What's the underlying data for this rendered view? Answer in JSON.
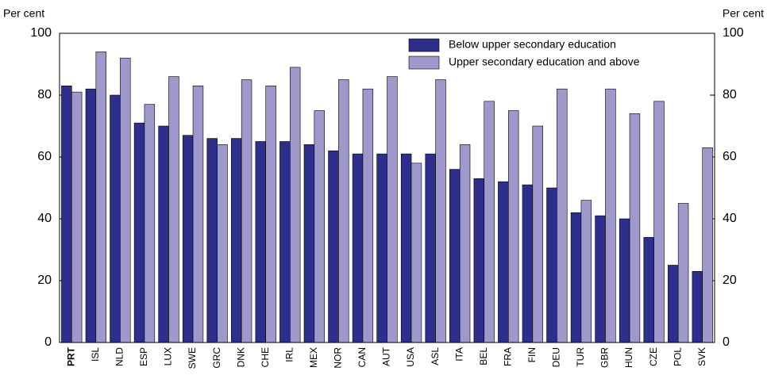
{
  "chart_data": {
    "type": "bar",
    "y_label": "Per cent",
    "y2_label": "Per cent",
    "categories": [
      "PRT",
      "ISL",
      "NLD",
      "ESP",
      "LUX",
      "SWE",
      "GRC",
      "DNK",
      "CHE",
      "IRL",
      "MEX",
      "NOR",
      "CAN",
      "AUT",
      "USA",
      "ASL",
      "ITA",
      "BEL",
      "FRA",
      "FIN",
      "DEU",
      "TUR",
      "GBR",
      "HUN",
      "CZE",
      "POL",
      "SVK"
    ],
    "series": [
      {
        "name": "Below upper secondary education",
        "color": "#2e2e8c",
        "values": [
          83,
          82,
          80,
          71,
          70,
          67,
          66,
          66,
          65,
          65,
          64,
          62,
          61,
          61,
          61,
          61,
          56,
          53,
          52,
          51,
          50,
          42,
          41,
          40,
          34,
          25,
          23
        ]
      },
      {
        "name": "Upper secondary education and above",
        "color": "#9e98cb",
        "values": [
          81,
          94,
          92,
          77,
          86,
          83,
          64,
          85,
          83,
          89,
          75,
          85,
          82,
          86,
          58,
          85,
          64,
          78,
          75,
          70,
          82,
          46,
          82,
          74,
          78,
          45,
          63
        ]
      }
    ],
    "ylim": [
      0,
      100
    ],
    "yticks": [
      0,
      20,
      40,
      60,
      80,
      100
    ],
    "y2lim": [
      0,
      100
    ],
    "y2ticks": [
      0,
      20,
      40,
      60,
      80,
      100
    ],
    "legend": "upper right"
  }
}
